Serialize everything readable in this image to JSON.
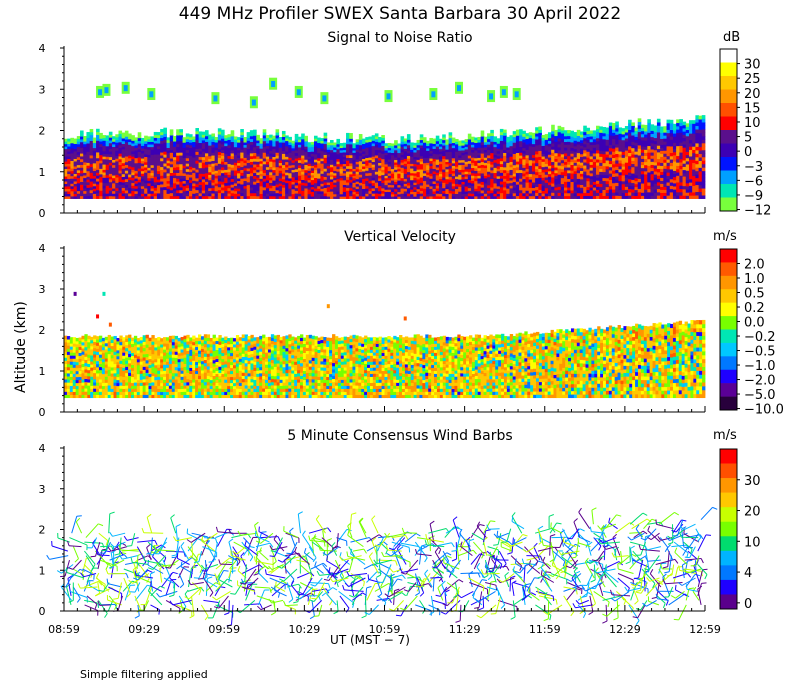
{
  "title": "449 MHz Profiler SWEX Santa Barbara 30 April 2022",
  "ylabel": "Altitude (km)",
  "xlabel": "UT  (MST − 7)",
  "footnote": "Simple filtering applied",
  "chart_data": [
    {
      "type": "heatmap",
      "title": "Signal to Noise Ratio",
      "ylabel": "Altitude (km)",
      "ylim": [
        0,
        4
      ],
      "yticks": [
        "0",
        "1",
        "2",
        "3",
        "4"
      ],
      "colorbar": {
        "unit": "dB",
        "labels": [
          "30",
          "25",
          "20",
          "15",
          "10",
          "5",
          "0",
          "−3",
          "−6",
          "−9",
          "−12"
        ],
        "colors": [
          "#ffffff",
          "#ffff00",
          "#ffc800",
          "#ff9600",
          "#ff5000",
          "#ff0000",
          "#5a0f8c",
          "#3c00b4",
          "#0014ff",
          "#00a0ff",
          "#00e6b4",
          "#78ff3c"
        ]
      }
    },
    {
      "type": "heatmap",
      "title": "Vertical Velocity",
      "ylabel": "Altitude (km)",
      "ylim": [
        0,
        4
      ],
      "yticks": [
        "0",
        "1",
        "2",
        "3",
        "4"
      ],
      "colorbar": {
        "unit": "m/s",
        "labels": [
          "2.0",
          "1.0",
          "0.5",
          "0.2",
          "0.0",
          "−0.2",
          "−0.5",
          "−1.0",
          "−2.0",
          "−5.0",
          "−10.0"
        ],
        "colors": [
          "#ff0000",
          "#ff5a00",
          "#ff9600",
          "#ffc800",
          "#ffff00",
          "#78ff00",
          "#00e6b4",
          "#00c8ff",
          "#0078ff",
          "#1e00ff",
          "#5a0096",
          "#28003c"
        ]
      }
    },
    {
      "type": "scatter",
      "title": "5 Minute Consensus Wind Barbs",
      "ylabel": "Altitude (km)",
      "ylim": [
        0,
        4
      ],
      "yticks": [
        "0",
        "1",
        "2",
        "3",
        "4"
      ],
      "colorbar": {
        "unit": "m/s",
        "labels": [
          "30",
          "20",
          "10",
          "4",
          "0"
        ],
        "colors": [
          "#ff0000",
          "#ff5000",
          "#ff9600",
          "#ffc800",
          "#c8ff00",
          "#78ff00",
          "#00dc6e",
          "#00b4ff",
          "#0078ff",
          "#1e00ff",
          "#5a008c"
        ]
      }
    }
  ],
  "xaxis": {
    "ticks": [
      "08:59",
      "09:29",
      "09:59",
      "10:29",
      "10:59",
      "11:29",
      "11:59",
      "12:29",
      "12:59"
    ]
  }
}
